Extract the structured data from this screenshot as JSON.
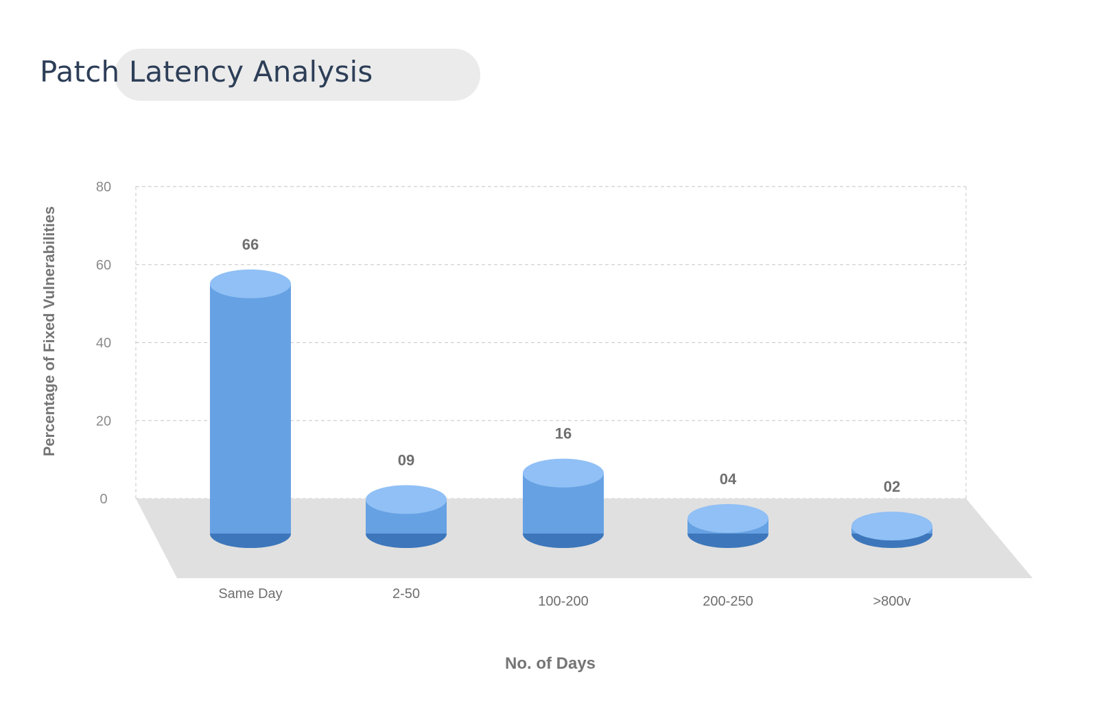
{
  "title": "Patch Latency Analysis",
  "colors": {
    "bar_body": "#66a1e3",
    "bar_top": "#90c0f5",
    "bar_bottom": "#3d76ba",
    "floor": "#e0e0e0",
    "title_pill": "#ebebeb",
    "title_text": "#2d3e57"
  },
  "chart_data": {
    "type": "bar",
    "style": "3d-cylinder",
    "categories": [
      "Same Day",
      "2-50",
      "100-200",
      "200-250",
      ">800v"
    ],
    "values": [
      66,
      9,
      16,
      4,
      2
    ],
    "data_labels": [
      "66",
      "09",
      "16",
      "04",
      "02"
    ],
    "xlabel": "No. of Days",
    "ylabel": "Percentage of Fixed Vulnerabilities",
    "ylim": [
      0,
      80
    ],
    "yticks": [
      0,
      20,
      40,
      60,
      80
    ],
    "grid": true
  }
}
